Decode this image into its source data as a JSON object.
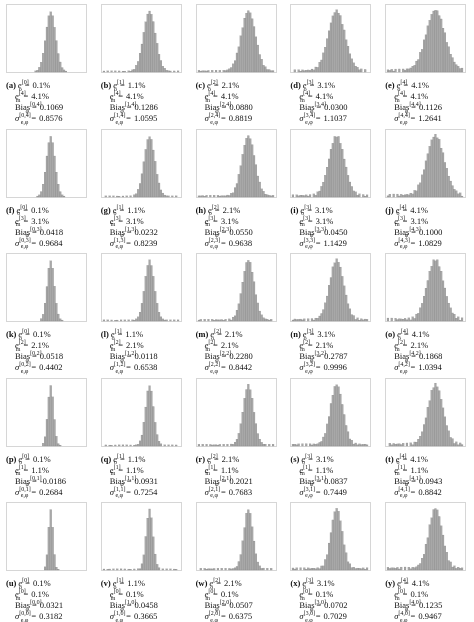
{
  "symbols": {
    "e": "e",
    "o": "o",
    "m": "m",
    "bias": "Bias",
    "phi": "φ",
    "sigma": "σ",
    "esub": "e,φ",
    "eq": "="
  },
  "panels": [
    {
      "label": "(a)",
      "eo_index": "[0]",
      "eo": "0.1%",
      "em_index": "[4]",
      "em": "4.1%",
      "pair": "[0,4]",
      "bias": "0.1069",
      "sigma": "0.8576"
    },
    {
      "label": "(b)",
      "eo_index": "[1]",
      "eo": "1.1%",
      "em_index": "[4]",
      "em": "4.1%",
      "pair": "[1,4]",
      "bias": "0.1286",
      "sigma": "1.0595"
    },
    {
      "label": "(c)",
      "eo_index": "[2]",
      "eo": "2.1%",
      "em_index": "[4]",
      "em": "4.1%",
      "pair": "[2,4]",
      "bias": "0.0880",
      "sigma": "0.8819"
    },
    {
      "label": "(d)",
      "eo_index": "[3]",
      "eo": "3.1%",
      "em_index": "[4]",
      "em": "4.1%",
      "pair": "[3,4]",
      "bias": "0.0300",
      "sigma": "1.1037"
    },
    {
      "label": "(e)",
      "eo_index": "[4]",
      "eo": "4.1%",
      "em_index": "[4]",
      "em": "4.1%",
      "pair": "[4,4]",
      "bias": "0.1126",
      "sigma": "1.2641"
    },
    {
      "label": "(f)",
      "eo_index": "[0]",
      "eo": "0.1%",
      "em_index": "[3]",
      "em": "3.1%",
      "pair": "[0,3]",
      "bias": "0.0418",
      "sigma": "0.9684"
    },
    {
      "label": "(g)",
      "eo_index": "[1]",
      "eo": "1.1%",
      "em_index": "[3]",
      "em": "3.1%",
      "pair": "[1,3]",
      "bias": "0.0232",
      "sigma": "0.8239"
    },
    {
      "label": "(h)",
      "eo_index": "[2]",
      "eo": "2.1%",
      "em_index": "[3]",
      "em": "3.1%",
      "pair": "[2,3]",
      "bias": "0.0550",
      "sigma": "0.9638"
    },
    {
      "label": "(i)",
      "eo_index": "[3]",
      "eo": "3.1%",
      "em_index": "[3]",
      "em": "3.1%",
      "pair": "[3,3]",
      "bias": "0.0450",
      "sigma": "1.1429"
    },
    {
      "label": "(j)",
      "eo_index": "[4]",
      "eo": "4.1%",
      "em_index": "[3]",
      "em": "3.1%",
      "pair": "[4,3]",
      "bias": "0.1000",
      "sigma": "1.0829"
    },
    {
      "label": "(k)",
      "eo_index": "[0]",
      "eo": "0.1%",
      "em_index": "[2]",
      "em": "2.1%",
      "pair": "[0,2]",
      "bias": "0.0518",
      "sigma": "0.4402"
    },
    {
      "label": "(l)",
      "eo_index": "[1]",
      "eo": "1.1%",
      "em_index": "[2]",
      "em": "2.1%",
      "pair": "[1,2]",
      "bias": "0.0118",
      "sigma": "0.6538"
    },
    {
      "label": "(m)",
      "eo_index": "[2]",
      "eo": "2.1%",
      "em_index": "[2]",
      "em": "2.1%",
      "pair": "[2,2]",
      "bias": "0.2280",
      "sigma": "0.8442"
    },
    {
      "label": "(n)",
      "eo_index": "[3]",
      "eo": "3.1%",
      "em_index": "[2]",
      "em": "2.1%",
      "pair": "[3,2]",
      "bias": "0.2787",
      "sigma": "0.9996"
    },
    {
      "label": "(o)",
      "eo_index": "[4]",
      "eo": "4.1%",
      "em_index": "[2]",
      "em": "2.1%",
      "pair": "[4,2]",
      "bias": "0.1868",
      "sigma": "1.0394"
    },
    {
      "label": "(p)",
      "eo_index": "[0]",
      "eo": "0.1%",
      "em_index": "[1]",
      "em": "1.1%",
      "pair": "[0,1]",
      "bias": "-0.0186",
      "sigma": "0.2684"
    },
    {
      "label": "(q)",
      "eo_index": "[1]",
      "eo": "1.1%",
      "em_index": "[1]",
      "em": "1.1%",
      "pair": "[1,1]",
      "bias": "0.0931",
      "sigma": "0.7254"
    },
    {
      "label": "(r)",
      "eo_index": "[2]",
      "eo": "2.1%",
      "em_index": "[1]",
      "em": "1.1%",
      "pair": "[2,1]",
      "bias": "0.2021",
      "sigma": "0.7683"
    },
    {
      "label": "(s)",
      "eo_index": "[3]",
      "eo": "3.1%",
      "em_index": "[1]",
      "em": "1.1%",
      "pair": "[3,1]",
      "bias": "0.0837",
      "sigma": "0.7449"
    },
    {
      "label": "(t)",
      "eo_index": "[4]",
      "eo": "4.1%",
      "em_index": "[1]",
      "em": "1.1%",
      "pair": "[4,1]",
      "bias": "0.0943",
      "sigma": "0.8842"
    },
    {
      "label": "(u)",
      "eo_index": "[0]",
      "eo": "0.1%",
      "em_index": "[0]",
      "em": "0.1%",
      "pair": "[0,0]",
      "bias": "0.0321",
      "sigma": "0.3182"
    },
    {
      "label": "(v)",
      "eo_index": "[1]",
      "eo": "1.1%",
      "em_index": "[0]",
      "em": "0.1%",
      "pair": "[1,0]",
      "bias": "0.0458",
      "sigma": "0.3665"
    },
    {
      "label": "(w)",
      "eo_index": "[2]",
      "eo": "2.1%",
      "em_index": "[0]",
      "em": "0.1%",
      "pair": "[2,0]",
      "bias": "0.0507",
      "sigma": "0.6375"
    },
    {
      "label": "(x)",
      "eo_index": "[3]",
      "eo": "3.1%",
      "em_index": "[0]",
      "em": "0.1%",
      "pair": "[3,0]",
      "bias": "0.0702",
      "sigma": "0.7029"
    },
    {
      "label": "(y)",
      "eo_index": "[4]",
      "eo": "4.1%",
      "em_index": "[0]",
      "em": "0.1%",
      "pair": "[4,0]",
      "bias": "0.1235",
      "sigma": "0.9467"
    }
  ]
}
